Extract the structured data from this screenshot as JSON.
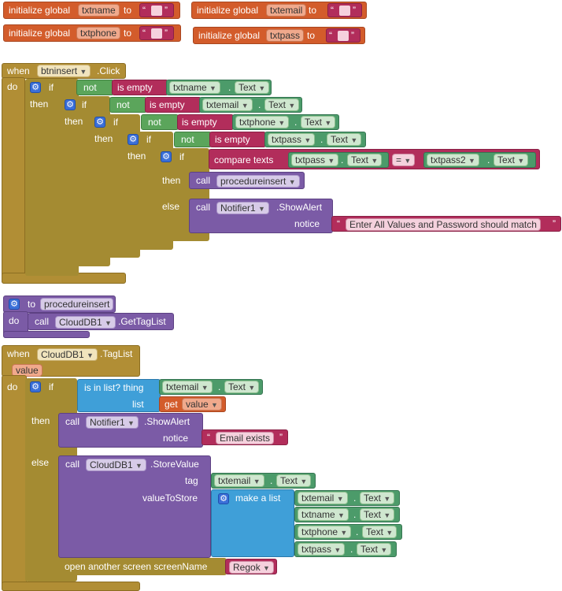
{
  "globals": [
    {
      "keyword": "initialize global",
      "name": "txtname",
      "to": "to",
      "open_quote": "“",
      "close_quote": "”"
    },
    {
      "keyword": "initialize global",
      "name": "txtemail",
      "to": "to",
      "open_quote": "“",
      "close_quote": "”"
    },
    {
      "keyword": "initialize global",
      "name": "txtphone",
      "to": "to",
      "open_quote": "“",
      "close_quote": "”"
    },
    {
      "keyword": "initialize global",
      "name": "txtpass",
      "to": "to",
      "open_quote": "“",
      "close_quote": "”"
    }
  ],
  "event1": {
    "when": "when",
    "component": "btninsert",
    "event": ".Click",
    "do": "do",
    "if": "if",
    "then": "then",
    "else": "else",
    "not": "not",
    "is_empty": "is empty",
    "dot": ".",
    "text_prop": "Text",
    "fields": [
      "txtname",
      "txtemail",
      "txtphone",
      "txtpass"
    ],
    "compare": "compare texts",
    "cmp_left": "txtpass",
    "cmp_op": "=",
    "cmp_right": "txtpass2",
    "call": "call",
    "procedure": "procedureinsert",
    "notifier": "Notifier1",
    "method": ".ShowAlert",
    "notice": "notice",
    "alert_text": "Enter All Values and Password should match",
    "quote_open": "“",
    "quote_close": "”"
  },
  "proc": {
    "to": "to",
    "name": "procedureinsert",
    "do": "do",
    "call": "call",
    "component": "CloudDB1",
    "method": ".GetTagList"
  },
  "event2": {
    "when": "when",
    "component": "CloudDB1",
    "event": ".TagList",
    "param": "value",
    "do": "do",
    "if": "if",
    "then": "then",
    "else": "else",
    "is_in_list": "is in list? thing",
    "list": "list",
    "get": "get",
    "get_var": "value",
    "field": "txtemail",
    "dot": ".",
    "text_prop": "Text",
    "call": "call",
    "notifier": "Notifier1",
    "show_alert": ".ShowAlert",
    "notice": "notice",
    "exists_text": "Email exists",
    "quote_open": "“",
    "quote_close": "”",
    "clouddb": "CloudDB1",
    "store_value": ".StoreValue",
    "tag": "tag",
    "tag_field": "txtemail",
    "value_to_store": "valueToStore",
    "make_list": "make a list",
    "list_fields": [
      "txtemail",
      "txtname",
      "txtphone",
      "txtpass"
    ],
    "open_screen": "open another screen  screenName",
    "screen": "Regok"
  },
  "colors": {
    "event": "#b18e35",
    "variable": "#d35c2b",
    "logic": "#5ba55b",
    "text": "#b22d5b",
    "procedure": "#7b5ba6",
    "list": "#3f9fd8",
    "component": "#4c9b6a"
  }
}
